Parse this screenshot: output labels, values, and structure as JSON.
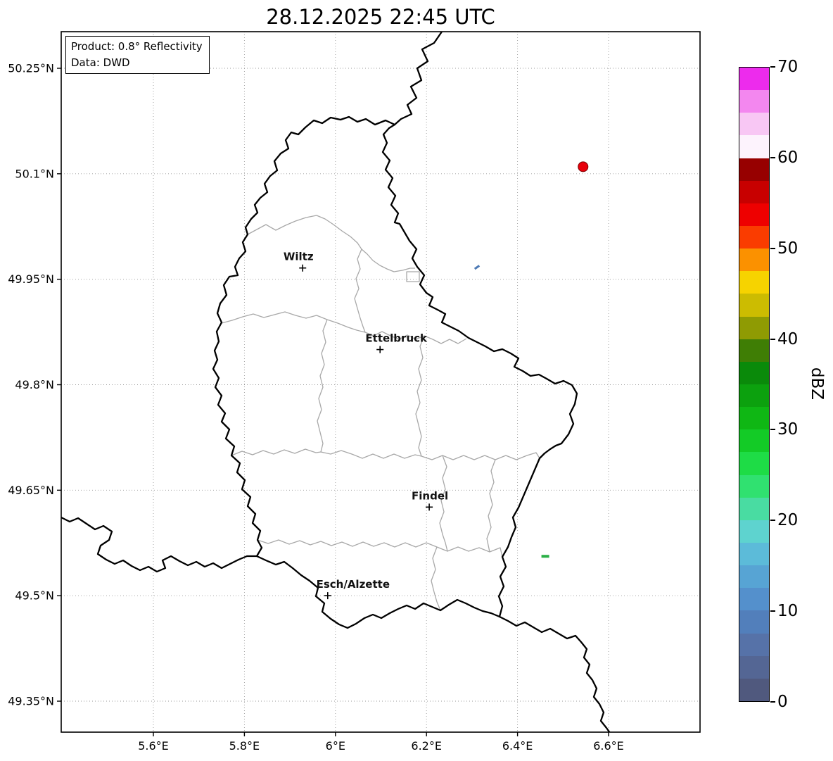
{
  "title": "28.12.2025 22:45 UTC",
  "info_box": {
    "line1": "Product: 0.8° Reflectivity",
    "line2": "Data: DWD"
  },
  "axes": {
    "x_ticks": [
      {
        "label": "5.6°E",
        "lon": 5.6
      },
      {
        "label": "5.8°E",
        "lon": 5.8
      },
      {
        "label": "6°E",
        "lon": 6.0
      },
      {
        "label": "6.2°E",
        "lon": 6.2
      },
      {
        "label": "6.4°E",
        "lon": 6.4
      },
      {
        "label": "6.6°E",
        "lon": 6.6
      }
    ],
    "y_ticks": [
      {
        "label": "50.25°N",
        "lat": 50.25
      },
      {
        "label": "50.1°N",
        "lat": 50.1
      },
      {
        "label": "49.95°N",
        "lat": 49.95
      },
      {
        "label": "49.8°N",
        "lat": 49.8
      },
      {
        "label": "49.65°N",
        "lat": 49.65
      },
      {
        "label": "49.5°N",
        "lat": 49.5
      },
      {
        "label": "49.35°N",
        "lat": 49.35
      }
    ]
  },
  "colorbar": {
    "label": "dBZ",
    "min": 0,
    "max": 70,
    "ticks": [
      {
        "label": "70",
        "value": 70
      },
      {
        "label": "60",
        "value": 60
      },
      {
        "label": "50",
        "value": 50
      },
      {
        "label": "40",
        "value": 40
      },
      {
        "label": "30",
        "value": 30
      },
      {
        "label": "20",
        "value": 20
      },
      {
        "label": "10",
        "value": 10
      },
      {
        "label": "0",
        "value": 0
      }
    ],
    "colors_bottom_to_top": [
      "#50597e",
      "#546694",
      "#5672a8",
      "#527fbb",
      "#5490cc",
      "#57a4d4",
      "#5cbbd9",
      "#5ed3cf",
      "#49dca2",
      "#30e170",
      "#1edc46",
      "#13cb26",
      "#0fb714",
      "#0ca10e",
      "#0a8a0a",
      "#3f7e05",
      "#8f9b03",
      "#ccbc01",
      "#f6d300",
      "#fb9100",
      "#fa3c00",
      "#ee0000",
      "#c80000",
      "#970000",
      "#fdf3fd",
      "#f8c7f4",
      "#f387ef",
      "#ed2bed"
    ]
  },
  "chart_data": {
    "type": "radar_reflectivity_map",
    "title": "28.12.2025 22:45 UTC",
    "product": "0.8° Reflectivity",
    "data_source": "DWD",
    "region": "Luxembourg",
    "x_axis": {
      "unit": "°E",
      "ticks": [
        5.6,
        5.8,
        6.0,
        6.2,
        6.4,
        6.6
      ],
      "range": [
        5.4,
        6.8
      ]
    },
    "y_axis": {
      "unit": "°N",
      "ticks": [
        50.25,
        50.1,
        49.95,
        49.8,
        49.65,
        49.5,
        49.35
      ],
      "range": [
        49.31,
        50.3
      ]
    },
    "colorbar_units": "dBZ",
    "colorbar_range": [
      0,
      70
    ],
    "cities": [
      {
        "name": "Wiltz",
        "lon": 5.928,
        "lat": 49.966,
        "label_dx": -6
      },
      {
        "name": "Ettelbruck",
        "lon": 6.098,
        "lat": 49.85,
        "label_dx": 23
      },
      {
        "name": "Findel",
        "lon": 6.206,
        "lat": 49.626,
        "label_dx": 1
      },
      {
        "name": "Esch/Alzette",
        "lon": 5.983,
        "lat": 49.5,
        "label_dx": 36
      }
    ],
    "echoes": [
      {
        "lon": 6.544,
        "lat": 50.11,
        "shape": "dot",
        "size": 7,
        "color": "#e8000b",
        "approx_dbz": 50
      },
      {
        "lon": 6.311,
        "lat": 49.967,
        "shape": "dash",
        "w": 8,
        "h": 3,
        "angle": -35,
        "color": "#4d7ab5",
        "approx_dbz": 8
      },
      {
        "lon": 6.461,
        "lat": 49.556,
        "shape": "dash",
        "w": 11,
        "h": 4,
        "angle": 0,
        "color": "#2bb046",
        "approx_dbz": 22
      }
    ]
  }
}
